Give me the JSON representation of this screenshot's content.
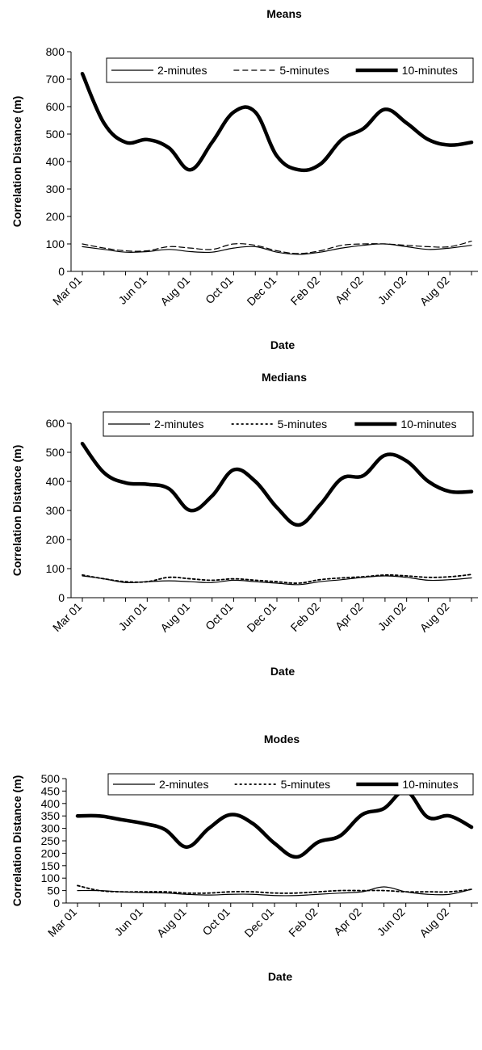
{
  "chart_data": [
    {
      "type": "line",
      "title": "Means",
      "xlabel": "Date",
      "ylabel": "Correlation Distance (m)",
      "x_tick_labels": [
        "Mar 01",
        "Jun 01",
        "Aug 01",
        "Oct 01",
        "Dec 01",
        "Feb 02",
        "Apr 02",
        "Jun 02",
        "Aug 02"
      ],
      "ylim": [
        0,
        800
      ],
      "y_ticks": [
        0,
        100,
        200,
        300,
        400,
        500,
        600,
        700,
        800
      ],
      "grid": false,
      "legend": "top",
      "x": [
        "Mar 01",
        "Apr 01",
        "May 01",
        "Jun 01",
        "Jul 01",
        "Aug 01",
        "Sep 01",
        "Oct 01",
        "Nov 01",
        "Dec 01",
        "Jan 02",
        "Feb 02",
        "Mar 02",
        "Apr 02",
        "May 02",
        "Jun 02",
        "Jul 02",
        "Aug 02",
        "Sep 02"
      ],
      "series": [
        {
          "name": "2-minutes",
          "style": "solid-thin",
          "color": "#000000",
          "values": [
            90,
            80,
            70,
            72,
            80,
            72,
            70,
            85,
            90,
            70,
            62,
            70,
            85,
            95,
            100,
            90,
            80,
            85,
            95
          ]
        },
        {
          "name": "5-minutes",
          "style": "dashed-thin",
          "color": "#000000",
          "values": [
            100,
            85,
            75,
            75,
            90,
            85,
            80,
            100,
            95,
            75,
            65,
            75,
            95,
            100,
            100,
            95,
            90,
            90,
            110
          ]
        },
        {
          "name": "10-minutes",
          "style": "solid-thick",
          "color": "#000000",
          "values": [
            720,
            540,
            470,
            480,
            450,
            370,
            470,
            580,
            580,
            420,
            370,
            390,
            480,
            520,
            590,
            540,
            480,
            460,
            470
          ]
        }
      ]
    },
    {
      "type": "line",
      "title": "Medians",
      "xlabel": "Date",
      "ylabel": "Correlation Distance (m)",
      "x_tick_labels": [
        "Mar 01",
        "Jun 01",
        "Aug 01",
        "Oct 01",
        "Dec 01",
        "Feb 02",
        "Apr 02",
        "Jun 02",
        "Aug 02"
      ],
      "ylim": [
        0,
        600
      ],
      "y_ticks": [
        0,
        100,
        200,
        300,
        400,
        500,
        600
      ],
      "grid": false,
      "legend": "top",
      "x": [
        "Mar 01",
        "Apr 01",
        "May 01",
        "Jun 01",
        "Jul 01",
        "Aug 01",
        "Sep 01",
        "Oct 01",
        "Nov 01",
        "Dec 01",
        "Jan 02",
        "Feb 02",
        "Mar 02",
        "Apr 02",
        "May 02",
        "Jun 02",
        "Jul 02",
        "Aug 02",
        "Sep 02"
      ],
      "series": [
        {
          "name": "2-minutes",
          "style": "solid-thin",
          "color": "#000000",
          "values": [
            75,
            65,
            52,
            55,
            58,
            55,
            52,
            60,
            55,
            50,
            45,
            55,
            62,
            70,
            75,
            70,
            60,
            62,
            68
          ]
        },
        {
          "name": "5-minutes",
          "style": "dotted-thin",
          "color": "#000000",
          "values": [
            78,
            65,
            55,
            55,
            70,
            65,
            60,
            65,
            60,
            55,
            50,
            62,
            68,
            72,
            78,
            75,
            70,
            72,
            80
          ]
        },
        {
          "name": "10-minutes",
          "style": "solid-thick",
          "color": "#000000",
          "values": [
            530,
            430,
            395,
            390,
            375,
            300,
            350,
            440,
            400,
            310,
            250,
            320,
            410,
            420,
            490,
            470,
            400,
            365,
            365
          ]
        }
      ]
    },
    {
      "type": "line",
      "title": "Modes",
      "xlabel": "Date",
      "ylabel": "Correlation Distance (m)",
      "x_tick_labels": [
        "Mar 01",
        "Jun 01",
        "Aug 01",
        "Oct 01",
        "Dec 01",
        "Feb 02",
        "Apr 02",
        "Jun 02",
        "Aug 02"
      ],
      "ylim": [
        0,
        500
      ],
      "y_ticks": [
        0,
        50,
        100,
        150,
        200,
        250,
        300,
        350,
        400,
        450,
        500
      ],
      "grid": false,
      "legend": "top",
      "x": [
        "Mar 01",
        "Apr 01",
        "May 01",
        "Jun 01",
        "Jul 01",
        "Aug 01",
        "Sep 01",
        "Oct 01",
        "Nov 01",
        "Dec 01",
        "Jan 02",
        "Feb 02",
        "Mar 02",
        "Apr 02",
        "May 02",
        "Jun 02",
        "Jul 02",
        "Aug 02",
        "Sep 02"
      ],
      "series": [
        {
          "name": "2-minutes",
          "style": "solid-thin",
          "color": "#000000",
          "values": [
            50,
            50,
            45,
            42,
            40,
            35,
            32,
            35,
            35,
            30,
            30,
            35,
            40,
            45,
            65,
            45,
            35,
            35,
            55
          ]
        },
        {
          "name": "5-minutes",
          "style": "dotted-thin",
          "color": "#000000",
          "values": [
            70,
            50,
            45,
            45,
            45,
            40,
            40,
            45,
            45,
            40,
            40,
            45,
            50,
            50,
            50,
            45,
            45,
            45,
            55
          ]
        },
        {
          "name": "10-minutes",
          "style": "solid-thick",
          "color": "#000000",
          "values": [
            350,
            350,
            335,
            320,
            295,
            225,
            300,
            355,
            320,
            240,
            185,
            245,
            270,
            355,
            380,
            450,
            345,
            350,
            305
          ]
        }
      ]
    }
  ]
}
